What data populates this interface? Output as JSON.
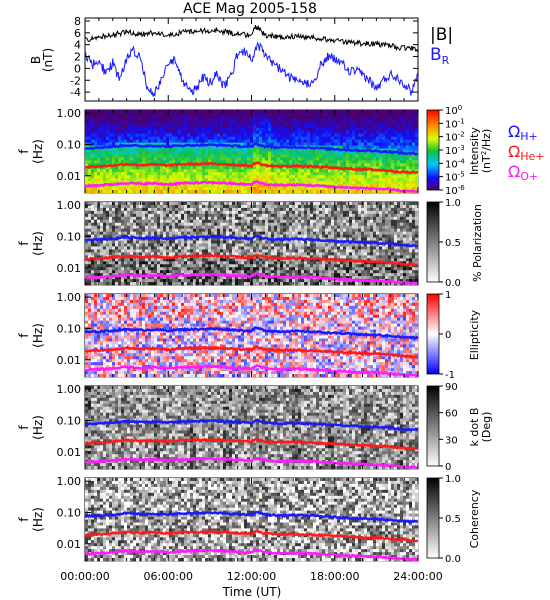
{
  "chart_data": {
    "title": "ACE Mag 2005-158",
    "time_axis": {
      "label": "Time (UT)",
      "ticks": [
        0,
        6,
        12,
        18,
        24
      ],
      "tick_labels": [
        "00:00:00",
        "06:00:00",
        "12:00:00",
        "18:00:00",
        "24:00:00"
      ],
      "range_hours": [
        0,
        24
      ]
    },
    "panels": [
      {
        "id": "bfield",
        "type": "line",
        "ylabel": "B",
        "yunit": "(nT)",
        "yrange": [
          -5.5,
          8.5
        ],
        "yticks": [
          -4,
          -2,
          0,
          2,
          4,
          6,
          8
        ],
        "series": [
          {
            "name": "|B|",
            "color": "#000000",
            "t": [
              0,
              1,
              2,
              3,
              4,
              5,
              6,
              7,
              8,
              9,
              10,
              11,
              12,
              12.3,
              13,
              14,
              15,
              16,
              17,
              18,
              19,
              20,
              21,
              22,
              23,
              24
            ],
            "v": [
              4.8,
              5.3,
              5.6,
              6.2,
              5.7,
              6.0,
              5.5,
              6.1,
              6.3,
              6.4,
              6.2,
              5.8,
              5.5,
              7.0,
              5.6,
              5.3,
              5.4,
              5.3,
              5.0,
              4.7,
              4.4,
              4.2,
              4.1,
              3.8,
              3.4,
              3.3
            ]
          },
          {
            "name": "BR",
            "color": "#1a1aff",
            "t": [
              0,
              0.5,
              1,
              1.5,
              2,
              2.5,
              3,
              3.5,
              4,
              4.5,
              5,
              5.5,
              6,
              6.5,
              7,
              7.5,
              8,
              8.5,
              9,
              9.5,
              10,
              10.5,
              11,
              11.5,
              12,
              12.5,
              13,
              13.5,
              14,
              14.5,
              15,
              15.5,
              16,
              16.5,
              17,
              17.5,
              18,
              18.5,
              19,
              19.5,
              20,
              20.5,
              21,
              21.5,
              22,
              22.5,
              23,
              23.5,
              24
            ],
            "v": [
              2.5,
              0.5,
              1.5,
              -1.0,
              1.0,
              -2.0,
              1.5,
              3.0,
              2.0,
              -3.5,
              -4.5,
              -2.0,
              0.5,
              1.5,
              -2.0,
              -4.0,
              -3.5,
              -1.5,
              -2.5,
              -1.0,
              -3.0,
              -1.5,
              2.5,
              3.0,
              1.5,
              4.0,
              2.0,
              1.0,
              0.0,
              -1.0,
              -2.0,
              -2.5,
              -2.5,
              -2.0,
              0.5,
              2.0,
              1.5,
              1.0,
              -0.5,
              -0.5,
              -1.0,
              -2.0,
              -3.5,
              -2.0,
              -1.0,
              -1.5,
              -2.5,
              -4.0,
              -1.0
            ]
          }
        ]
      },
      {
        "id": "intensity",
        "type": "heatmap",
        "ylabel": "f",
        "yunit": "(Hz)",
        "cmap": "spectral",
        "colorbar_ticks": [
          "10",
          "10",
          "10",
          "10",
          "10",
          "10",
          "10"
        ],
        "colorbar_exponents": [
          "0",
          "-1",
          "-2",
          "-3",
          "-4",
          "-5",
          "-6"
        ],
        "colorbar_label": "Intensity",
        "colorbar_unit_main": "(nT",
        "colorbar_unit_sup": "2",
        "colorbar_unit_end": "/Hz)"
      },
      {
        "id": "polarization",
        "type": "heatmap",
        "ylabel": "f",
        "yunit": "(Hz)",
        "cmap": "gray",
        "colorbar_ticks": [
          "1.0",
          "0.5",
          "0.0"
        ],
        "colorbar_label": "% Polarization"
      },
      {
        "id": "ellipticity",
        "type": "heatmap",
        "ylabel": "f",
        "yunit": "(Hz)",
        "cmap": "bwr",
        "colorbar_ticks": [
          "1",
          "0",
          "-1"
        ],
        "colorbar_label": "Ellipticity"
      },
      {
        "id": "kdotb",
        "type": "heatmap",
        "ylabel": "f",
        "yunit": "(Hz)",
        "cmap": "gray",
        "colorbar_ticks": [
          "90",
          "60",
          "30",
          "0"
        ],
        "colorbar_label": "k dot B",
        "colorbar_unit": "(Deg)"
      },
      {
        "id": "coherency",
        "type": "heatmap",
        "ylabel": "f",
        "yunit": "(Hz)",
        "cmap": "gray",
        "colorbar_ticks": [
          "1.0",
          "0.5",
          "0.0"
        ],
        "colorbar_label": "Coherency"
      }
    ],
    "freq_axis": {
      "yrange_log10": [
        -2.55,
        0.1
      ],
      "ticks": [
        1.0,
        0.1,
        0.01
      ],
      "tick_labels": [
        "1.00",
        "0.10",
        "0.01"
      ]
    },
    "gyro_series": [
      {
        "name": "ΩH+",
        "symbol": "Ω",
        "sub": "H+",
        "color": "#1a1aff",
        "t": [
          0,
          1,
          2,
          3,
          4,
          5,
          6,
          7,
          8,
          9,
          10,
          11,
          12,
          12.3,
          13,
          14,
          15,
          16,
          17,
          18,
          19,
          20,
          21,
          22,
          23,
          24
        ],
        "f": [
          0.075,
          0.08,
          0.085,
          0.095,
          0.088,
          0.092,
          0.085,
          0.093,
          0.095,
          0.097,
          0.094,
          0.088,
          0.083,
          0.105,
          0.085,
          0.08,
          0.082,
          0.08,
          0.076,
          0.071,
          0.067,
          0.064,
          0.062,
          0.058,
          0.052,
          0.05
        ]
      },
      {
        "name": "ΩHe+",
        "symbol": "Ω",
        "sub": "He+",
        "color": "#ff1a1a",
        "factor": 0.25
      },
      {
        "name": "ΩO+",
        "symbol": "Ω",
        "sub": "O+",
        "color": "#ff1aff",
        "factor": 0.0625
      }
    ],
    "legend_top": {
      "items": [
        {
          "text": "|B|",
          "color": "#000000"
        },
        {
          "text": "B",
          "sub": "R",
          "color": "#1a1aff"
        }
      ]
    }
  }
}
